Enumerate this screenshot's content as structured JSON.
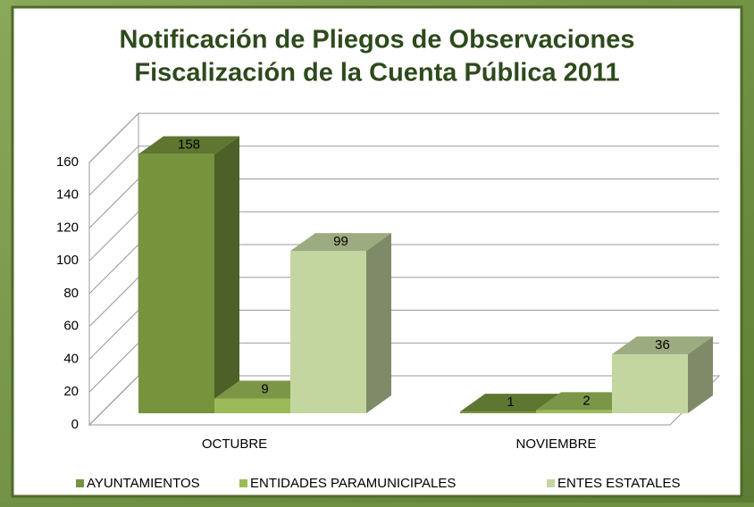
{
  "chart_data": {
    "type": "bar3d",
    "title": "Notificación de Pliegos de Observaciones",
    "subtitle": "Fiscalización de la Cuenta Pública 2011",
    "categories": [
      "OCTUBRE",
      "NOVIEMBRE"
    ],
    "series": [
      {
        "name": "AYUNTAMIENTOS",
        "color": "#77933c",
        "values": [
          158,
          1
        ]
      },
      {
        "name": "ENTIDADES PARAMUNICIPALES",
        "color": "#9bbb59",
        "values": [
          9,
          2
        ]
      },
      {
        "name": "ENTES ESTATALES",
        "color": "#c4d6a0",
        "values": [
          99,
          36
        ]
      }
    ],
    "ylim": [
      0,
      160
    ],
    "yticks": [
      0,
      20,
      40,
      60,
      80,
      100,
      120,
      140,
      160
    ],
    "grid": true
  }
}
